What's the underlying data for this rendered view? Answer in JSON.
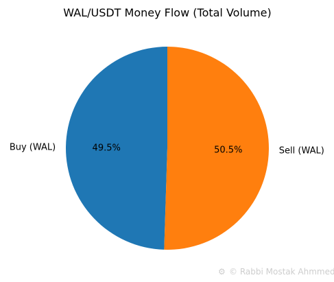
{
  "chart_data": {
    "type": "pie",
    "title": "WAL/USDT Money Flow (Total Volume)",
    "labels": [
      "Buy (WAL)",
      "Sell (WAL)"
    ],
    "values": [
      49.5,
      50.5
    ],
    "percent_labels": [
      "49.5%",
      "50.5%"
    ],
    "colors": [
      "#1f77b4",
      "#ff7f0e"
    ],
    "start_angle_deg": 90,
    "direction": "counterclockwise",
    "legend": "none"
  },
  "watermark": {
    "icon": "copyright-icon",
    "text": "© Rabbi  Mostak Ahmmed"
  }
}
